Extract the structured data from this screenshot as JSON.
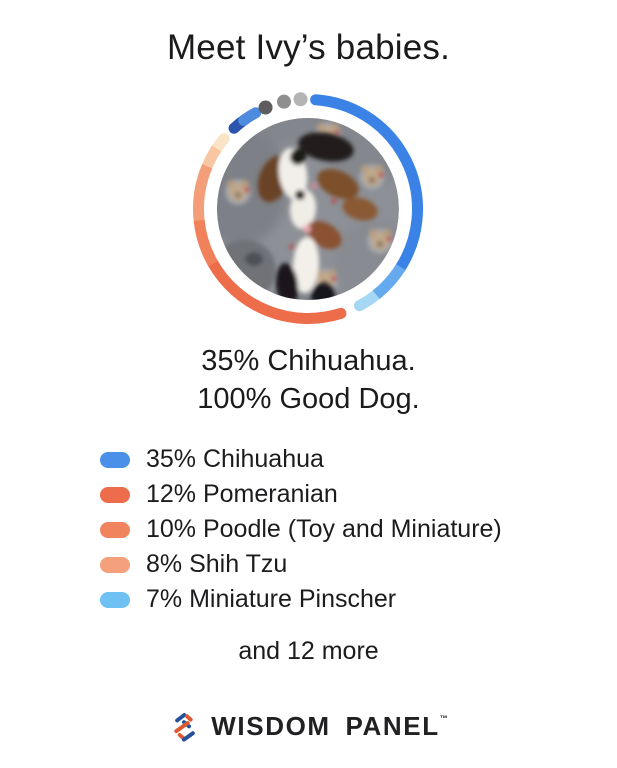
{
  "header": {
    "title": "Meet Ivy’s babies."
  },
  "headline": {
    "line1": "35% Chihuahua.",
    "line2": "100% Good Dog."
  },
  "legend": {
    "items": [
      {
        "label": "35% Chihuahua",
        "color": "#4a90e9"
      },
      {
        "label": "12% Pomeranian",
        "color": "#ec6c4c"
      },
      {
        "label": "10% Poodle (Toy and Miniature)",
        "color": "#f0845f"
      },
      {
        "label": "8% Shih Tzu",
        "color": "#f4a07c"
      },
      {
        "label": "7% Miniature Pinscher",
        "color": "#6fc0f3"
      }
    ],
    "more_label": "and 12 more"
  },
  "footer": {
    "brand": "WISDOM PANEL",
    "trademark": "™"
  },
  "colors": {
    "background": "#ffffff",
    "text": "#1c1c1e",
    "accent_blue": "#3a82e6",
    "accent_orange": "#ed6c4a",
    "logo_blue": "#24519c",
    "logo_orange": "#dd5930"
  },
  "chart_data": {
    "type": "pie",
    "variant": "donut-ring-around-photo",
    "title": "Breed mix of Ivy’s litter",
    "series": [
      {
        "name": "Chihuahua",
        "value_pct": 35,
        "color": "#3a82e6"
      },
      {
        "name": "Pomeranian",
        "value_pct": 12,
        "color": "#ed6c4a"
      },
      {
        "name": "Poodle (Toy and Miniature)",
        "value_pct": 10,
        "color": "#f0815a"
      },
      {
        "name": "Shih Tzu",
        "value_pct": 8,
        "color": "#f49e79"
      },
      {
        "name": "Miniature Pinscher",
        "value_pct": 7,
        "color": "#65a9ee"
      },
      {
        "name": "12 more breeds",
        "count": 12
      }
    ],
    "legend_position": "below",
    "ring": {
      "center": [
        120,
        120
      ],
      "radius": 109.5,
      "stroke_width": 11,
      "photo_radius": 91,
      "segments": [
        {
          "name": "ring-blue-pale",
          "from": 141,
          "to": 152,
          "color": "#a6d8f5",
          "cap": "round"
        },
        {
          "name": "ring-blue-main",
          "from": 4,
          "to": 123,
          "color": "#3a82e6",
          "cap": "round"
        },
        {
          "name": "ring-blue-mid",
          "from": 122,
          "to": 141.5,
          "color": "#65a9ee",
          "cap": "butt"
        },
        {
          "name": "ring-orange-main",
          "from": 162.5,
          "to": 240.5,
          "color": "#ed6c4a",
          "cap": "round"
        },
        {
          "name": "ring-peach-palest",
          "from": 303,
          "to": 310,
          "color": "#fbe3c8",
          "cap": "round"
        },
        {
          "name": "ring-orange-mid",
          "from": 240,
          "to": 264.5,
          "color": "#f0815a",
          "cap": "butt"
        },
        {
          "name": "ring-salmon-light",
          "from": 264,
          "to": 293.5,
          "color": "#f49e79",
          "cap": "butt"
        },
        {
          "name": "ring-peach",
          "from": 293,
          "to": 303.5,
          "color": "#f8c7a2",
          "cap": "butt"
        },
        {
          "name": "ring-navy-small",
          "from": 317.5,
          "to": 325,
          "color": "#2c55ae",
          "cap": "round"
        },
        {
          "name": "ring-blue-small",
          "from": 324,
          "to": 331.5,
          "color": "#4e8ade",
          "cap": "round"
        }
      ],
      "dots": [
        {
          "angle": 337.3,
          "color": "#5d5d5d"
        },
        {
          "angle": 347.4,
          "color": "#8e8e8e"
        },
        {
          "angle": 356.1,
          "color": "#b4b4b4"
        }
      ],
      "dot_radius": 7,
      "dot_ring_radius": 110
    }
  }
}
